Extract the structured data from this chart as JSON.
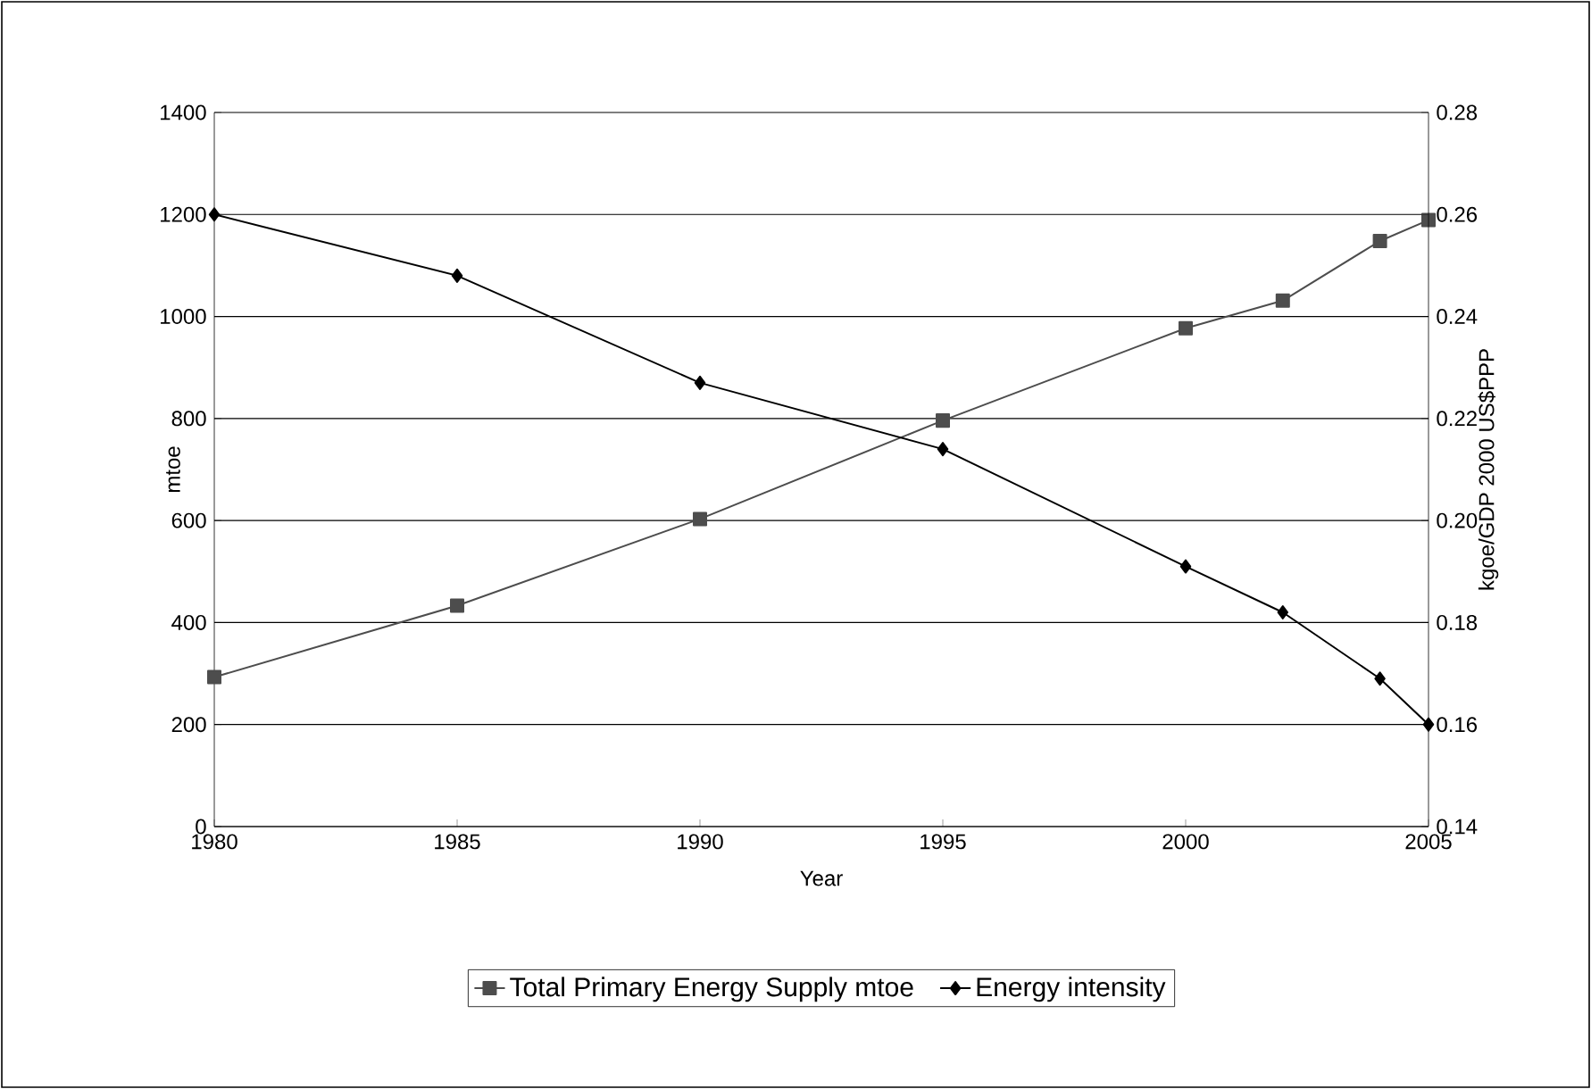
{
  "chart_data": {
    "type": "line",
    "xlabel": "Year",
    "ylabel": "mtoe",
    "y2label": "kgoe/GDP 2000 US$PPP",
    "x": [
      1980,
      1985,
      1990,
      1995,
      2000,
      2002,
      2004,
      2005
    ],
    "series": [
      {
        "name": "Total Primary Energy Supply mtoe",
        "color": "#4d4d4d",
        "marker": "square",
        "values": [
          293,
          433,
          603,
          796,
          977,
          1031,
          1148,
          1189
        ]
      },
      {
        "name": "Energy intensity",
        "color": "#000000",
        "marker": "diamond",
        "axis": "y2",
        "values": [
          0.26,
          0.248,
          0.227,
          0.214,
          0.191,
          0.182,
          0.169,
          0.16
        ]
      }
    ],
    "xlim": [
      1980,
      2005
    ],
    "xticks": [
      1980,
      1985,
      1990,
      1995,
      2000,
      2005
    ],
    "ylim": [
      0,
      1400
    ],
    "yticks": [
      0,
      200,
      400,
      600,
      800,
      1000,
      1200,
      1400
    ],
    "y2lim": [
      0.14,
      0.28
    ],
    "y2ticks": [
      {
        "value": 0.14,
        "label": "0.14"
      },
      {
        "value": 0.16,
        "label": "0.16"
      },
      {
        "value": 0.18,
        "label": "0.18"
      },
      {
        "value": 0.2,
        "label": "0.20"
      },
      {
        "value": 0.22,
        "label": "0.22"
      },
      {
        "value": 0.24,
        "label": "0.24"
      },
      {
        "value": 0.26,
        "label": "0.26"
      },
      {
        "value": 0.28,
        "label": "0.28"
      }
    ],
    "grid": "y",
    "legend": "bottom",
    "line_style": "solid"
  }
}
